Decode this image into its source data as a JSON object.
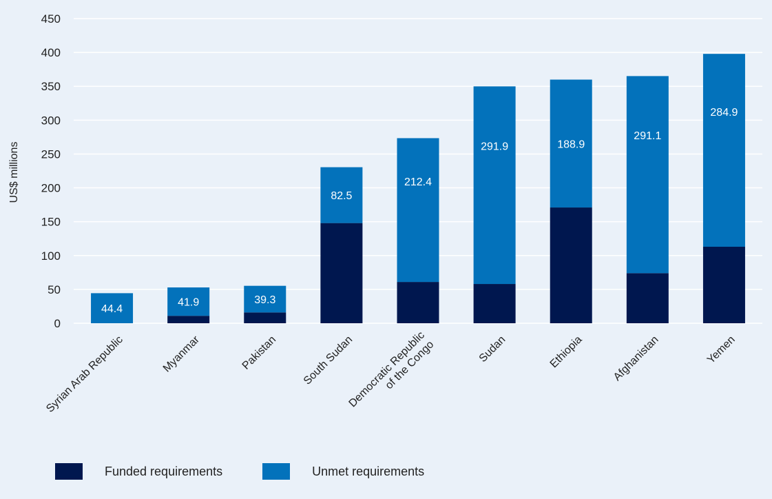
{
  "chart_data": {
    "type": "bar",
    "stacked": true,
    "ylabel": "US$ millions",
    "ylim": [
      0,
      450
    ],
    "yticks": [
      0,
      50,
      100,
      150,
      200,
      250,
      300,
      350,
      400,
      450
    ],
    "grid": true,
    "legend_position": "bottom-left",
    "categories": [
      [
        "Syrian Arab Republic"
      ],
      [
        "Myanmar"
      ],
      [
        "Pakistan"
      ],
      [
        "South Sudan"
      ],
      [
        "Democratic Republic",
        "of the Congo"
      ],
      [
        "Sudan"
      ],
      [
        "Ethiopia"
      ],
      [
        "Afghanistan"
      ],
      [
        "Yemen"
      ]
    ],
    "series": [
      {
        "name": "Funded requirements",
        "color": "#00174f",
        "values": [
          0,
          11,
          16,
          148,
          61,
          58,
          171,
          74,
          113
        ]
      },
      {
        "name": "Unmet requirements",
        "color": "#0372bb",
        "values": [
          44.4,
          41.9,
          39.3,
          82.5,
          212.4,
          291.9,
          188.9,
          291.1,
          284.9
        ]
      }
    ],
    "data_labels": [
      "44.4",
      "41.9",
      "39.3",
      "82.5",
      "212.4",
      "291.9",
      "188.9",
      "291.1",
      "284.9"
    ]
  }
}
